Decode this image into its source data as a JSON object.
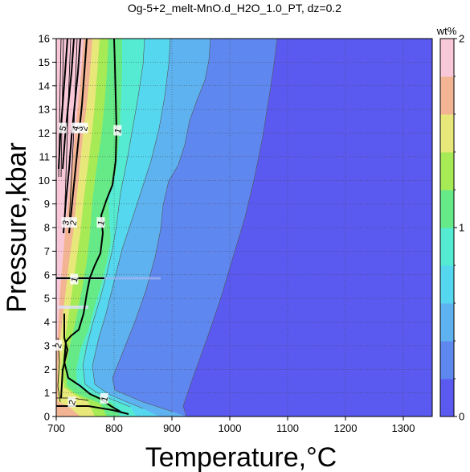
{
  "chart_data": {
    "type": "contour",
    "title": "Og-5+2_melt-MnO.d_H2O_1.0_PT, dz=0.2",
    "xlabel": "Temperature,°C",
    "ylabel": "Pressure,kbar",
    "xlim": [
      700,
      1350
    ],
    "ylim": [
      0,
      16
    ],
    "x_ticks": [
      "700",
      "800",
      "900",
      "1000",
      "1100",
      "1200",
      "1300"
    ],
    "y_ticks": [
      "0",
      "1",
      "2",
      "3",
      "4",
      "5",
      "6",
      "7",
      "8",
      "9",
      "10",
      "11",
      "12",
      "13",
      "14",
      "15",
      "16"
    ],
    "grid": true,
    "colorbar": {
      "label": "wt%",
      "range": [
        0,
        2
      ],
      "ticks": [
        "0",
        "1",
        "2"
      ],
      "colors": [
        "#5a5af0",
        "#5f87f0",
        "#5eb2f0",
        "#55d7f0",
        "#55ebd2",
        "#66ea88",
        "#a6ea55",
        "#e8e87a",
        "#f2b493",
        "#f8c8d8"
      ]
    },
    "contour_labels": [
      {
        "text": "1",
        "T": 806,
        "P": 12.1
      },
      {
        "text": "2",
        "T": 748,
        "P": 12.2
      },
      {
        "text": "3",
        "T": 740,
        "P": 12.2
      },
      {
        "text": "4",
        "T": 733,
        "P": 12.2
      },
      {
        "text": "5",
        "T": 711,
        "P": 12.2
      },
      {
        "text": "1",
        "T": 777,
        "P": 8.2
      },
      {
        "text": "2",
        "T": 729,
        "P": 8.2
      },
      {
        "text": "3",
        "T": 716,
        "P": 8.2
      },
      {
        "text": "1",
        "T": 731,
        "P": 5.8
      },
      {
        "text": "2",
        "T": 703,
        "P": 3.0
      },
      {
        "text": "2",
        "T": 727,
        "P": 0.6
      },
      {
        "text": "1",
        "T": 783,
        "P": 0.75
      }
    ]
  }
}
